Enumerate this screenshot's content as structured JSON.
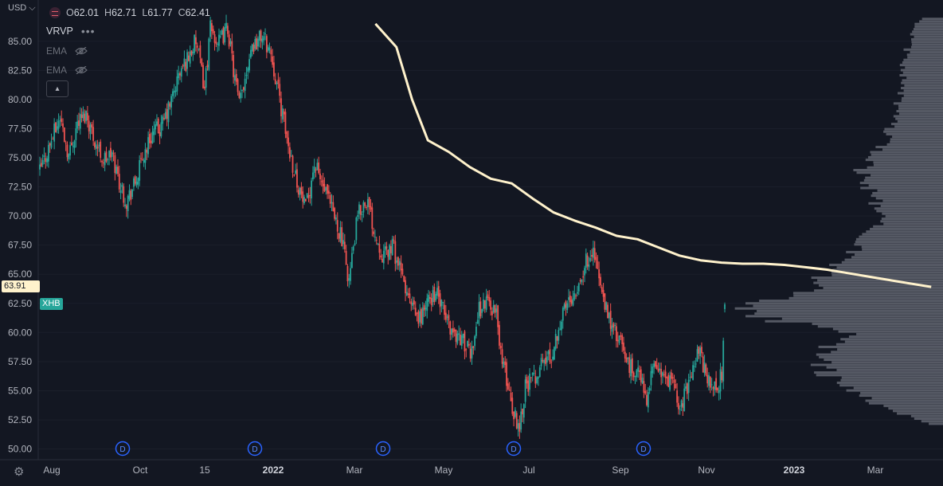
{
  "header": {
    "currency": "USD",
    "ohlc": {
      "open_label": "O",
      "open": "62.01",
      "high_label": "H",
      "high": "62.71",
      "low_label": "L",
      "low": "61.77",
      "close_label": "C",
      "close": "62.41"
    },
    "indicators": [
      {
        "name": "VRVP"
      },
      {
        "name": "EMA"
      },
      {
        "name": "EMA"
      }
    ]
  },
  "price_tags": {
    "ema_value": "63.91",
    "symbol": "XHB"
  },
  "colors": {
    "background": "#131722",
    "up": "#26a69a",
    "down": "#ef5350",
    "ema": "#fff2cc",
    "volume_profile": "#5d606b",
    "dividend_marker": "#2962ff"
  },
  "icons": [
    "symbol-logo-icon",
    "more-dots-icon",
    "eye-hidden-icon",
    "chevron-up-icon",
    "settings-gear-icon",
    "currency-chevron-icon"
  ],
  "chart_data": {
    "type": "candlestick",
    "symbol": "XHB",
    "y_axis": {
      "ticks": [
        50.0,
        52.5,
        55.0,
        57.5,
        60.0,
        62.5,
        65.0,
        67.5,
        70.0,
        72.5,
        75.0,
        77.5,
        80.0,
        82.5,
        85.0
      ],
      "range": [
        49.8,
        87.5
      ]
    },
    "x_axis": {
      "tick_labels": [
        "Aug",
        "Oct",
        "15",
        "2022",
        "Mar",
        "May",
        "Jul",
        "Sep",
        "Nov",
        "2023",
        "Mar"
      ],
      "bold": [
        "2022",
        "2023"
      ]
    },
    "series": [
      {
        "type": "candles",
        "anchors": [
          [
            0,
            73.8
          ],
          [
            8,
            76.5
          ],
          [
            14,
            78.5
          ],
          [
            20,
            75.2
          ],
          [
            26,
            78.0
          ],
          [
            32,
            78.8
          ],
          [
            38,
            76.5
          ],
          [
            44,
            74.8
          ],
          [
            50,
            75.3
          ],
          [
            56,
            72.5
          ],
          [
            60,
            71.3
          ],
          [
            66,
            72.8
          ],
          [
            72,
            75.3
          ],
          [
            78,
            77.2
          ],
          [
            84,
            77.5
          ],
          [
            90,
            79.5
          ],
          [
            96,
            82.0
          ],
          [
            102,
            83.5
          ],
          [
            108,
            85.0
          ],
          [
            114,
            81.0
          ],
          [
            118,
            86.0
          ],
          [
            124,
            84.8
          ],
          [
            130,
            86.2
          ],
          [
            134,
            82.5
          ],
          [
            138,
            79.5
          ],
          [
            146,
            84.5
          ],
          [
            154,
            85.5
          ],
          [
            160,
            84.0
          ],
          [
            166,
            80.0
          ],
          [
            172,
            76.0
          ],
          [
            178,
            73.0
          ],
          [
            184,
            70.5
          ],
          [
            190,
            74.5
          ],
          [
            196,
            72.5
          ],
          [
            202,
            70.5
          ],
          [
            208,
            68.5
          ],
          [
            214,
            64.5
          ],
          [
            220,
            70.0
          ],
          [
            226,
            71.5
          ],
          [
            232,
            68.5
          ],
          [
            238,
            66.5
          ],
          [
            244,
            67.5
          ],
          [
            250,
            65.0
          ],
          [
            256,
            62.5
          ],
          [
            262,
            61.0
          ],
          [
            268,
            62.5
          ],
          [
            274,
            63.5
          ],
          [
            280,
            61.5
          ],
          [
            286,
            60.0
          ],
          [
            292,
            59.5
          ],
          [
            298,
            58.0
          ],
          [
            304,
            62.0
          ],
          [
            310,
            62.8
          ],
          [
            316,
            61.5
          ],
          [
            320,
            57.5
          ],
          [
            324,
            55.5
          ],
          [
            328,
            53.0
          ],
          [
            332,
            52.0
          ],
          [
            336,
            55.5
          ],
          [
            342,
            56.0
          ],
          [
            348,
            57.5
          ],
          [
            354,
            58.0
          ],
          [
            360,
            61.0
          ],
          [
            366,
            62.8
          ],
          [
            372,
            64.0
          ],
          [
            378,
            66.0
          ],
          [
            382,
            67.2
          ],
          [
            386,
            65.5
          ],
          [
            390,
            62.5
          ],
          [
            396,
            60.5
          ],
          [
            402,
            59.0
          ],
          [
            408,
            57.0
          ],
          [
            414,
            56.5
          ],
          [
            420,
            54.5
          ],
          [
            426,
            57.5
          ],
          [
            432,
            56.0
          ],
          [
            438,
            55.5
          ],
          [
            444,
            53.5
          ],
          [
            450,
            56.5
          ],
          [
            456,
            58.5
          ],
          [
            462,
            56.0
          ],
          [
            468,
            55.0
          ],
          [
            472,
            56.5
          ],
          [
            474,
            62.4
          ]
        ],
        "total_bars": 475,
        "last_bar": {
          "open": 62.01,
          "high": 62.71,
          "low": 61.77,
          "close": 62.41
        }
      },
      {
        "type": "ema",
        "points": [
          [
            128,
            86.5
          ],
          [
            136,
            84.5
          ],
          [
            142,
            80.0
          ],
          [
            148,
            76.5
          ],
          [
            156,
            75.5
          ],
          [
            164,
            74.2
          ],
          [
            172,
            73.2
          ],
          [
            180,
            72.8
          ],
          [
            188,
            71.5
          ],
          [
            196,
            70.3
          ],
          [
            204,
            69.6
          ],
          [
            212,
            69.0
          ],
          [
            220,
            68.3
          ],
          [
            228,
            68.0
          ],
          [
            236,
            67.3
          ],
          [
            244,
            66.6
          ],
          [
            252,
            66.2
          ],
          [
            260,
            66.0
          ],
          [
            268,
            65.9
          ],
          [
            276,
            65.9
          ],
          [
            284,
            65.8
          ],
          [
            292,
            65.6
          ],
          [
            300,
            65.4
          ],
          [
            308,
            65.1
          ],
          [
            316,
            64.8
          ],
          [
            324,
            64.5
          ],
          [
            332,
            64.2
          ],
          [
            340,
            63.91
          ]
        ]
      }
    ],
    "volume_profile": {
      "price_levels": [
        52.0,
        54.0,
        56.0,
        58.0,
        60.0,
        61.0,
        62.0,
        64.0,
        66.0,
        68.0,
        70.0,
        72.0,
        74.0,
        76.0,
        78.0,
        80.0,
        82.0,
        84.0,
        86.0,
        87.0
      ],
      "relative_volume": [
        0.05,
        0.35,
        0.55,
        0.6,
        0.45,
        0.8,
        1.0,
        0.62,
        0.5,
        0.38,
        0.3,
        0.35,
        0.4,
        0.3,
        0.25,
        0.22,
        0.2,
        0.18,
        0.15,
        0.1
      ]
    },
    "dividend_markers": {
      "label": "D",
      "count": 5
    }
  }
}
